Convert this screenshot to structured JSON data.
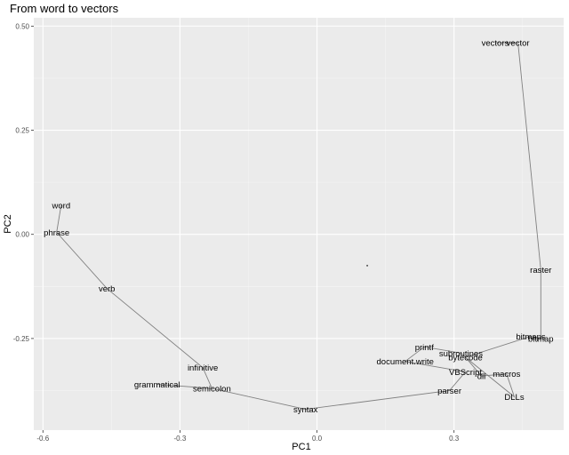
{
  "chart_data": {
    "type": "line",
    "title": "From word to vectors",
    "xlabel": "PC1",
    "ylabel": "PC2",
    "xlim": [
      -0.62,
      0.54
    ],
    "ylim": [
      -0.47,
      0.52
    ],
    "x_ticks": [
      -0.6,
      -0.3,
      0.0,
      0.3
    ],
    "x_tick_labels": [
      "-0.6",
      "-0.3",
      "0.0",
      "0.3"
    ],
    "y_ticks": [
      0.5,
      0.25,
      0.0,
      -0.25
    ],
    "y_tick_labels": [
      "0.50",
      "0.25",
      "0.00",
      "-0.25"
    ],
    "grid": true,
    "points": [
      {
        "label": "word",
        "x": -0.56,
        "y": 0.07
      },
      {
        "label": "phrase",
        "x": -0.57,
        "y": 0.005
      },
      {
        "label": "verb",
        "x": -0.46,
        "y": -0.13
      },
      {
        "label": "infinitive",
        "x": -0.25,
        "y": -0.32
      },
      {
        "label": "semicolon",
        "x": -0.23,
        "y": -0.37
      },
      {
        "label": "grammatical",
        "x": -0.35,
        "y": -0.36
      },
      {
        "label": "syntax",
        "x": -0.025,
        "y": -0.42
      },
      {
        "label": "parser",
        "x": 0.29,
        "y": -0.375
      },
      {
        "label": "VBScript",
        "x": 0.325,
        "y": -0.33
      },
      {
        "label": "document.write",
        "x": 0.193,
        "y": -0.305
      },
      {
        "label": "printf",
        "x": 0.235,
        "y": -0.27
      },
      {
        "label": "subroutines",
        "x": 0.315,
        "y": -0.285
      },
      {
        "label": "bytecode",
        "x": 0.325,
        "y": -0.295
      },
      {
        "label": "dll",
        "x": 0.36,
        "y": -0.34
      },
      {
        "label": "macros",
        "x": 0.415,
        "y": -0.335
      },
      {
        "label": "DLLs",
        "x": 0.432,
        "y": -0.39
      },
      {
        "label": "bitmaps",
        "x": 0.468,
        "y": -0.245
      },
      {
        "label": "bitmap",
        "x": 0.49,
        "y": -0.25
      },
      {
        "label": "raster",
        "x": 0.49,
        "y": -0.085
      },
      {
        "label": "vectors",
        "x": 0.39,
        "y": 0.46
      },
      {
        "label": "vector",
        "x": 0.44,
        "y": 0.46
      }
    ],
    "path_order": [
      "word",
      "phrase",
      "verb",
      "infinitive",
      "semicolon",
      "grammatical",
      "semicolon",
      "syntax",
      "parser",
      "VBScript",
      "document.write",
      "printf",
      "subroutines",
      "bytecode",
      "dll",
      "macros",
      "DLLs",
      "bytecode",
      "bitmaps",
      "bitmap",
      "raster",
      "vector",
      "vectors"
    ],
    "center_dot": {
      "x": 0.11,
      "y": -0.075
    },
    "colors": {
      "panel": "#ebebeb",
      "grid_major": "#ffffff",
      "grid_minor": "#f5f5f5",
      "line": "#808080",
      "text": "#000000",
      "tick_text": "#4d4d4d"
    }
  }
}
